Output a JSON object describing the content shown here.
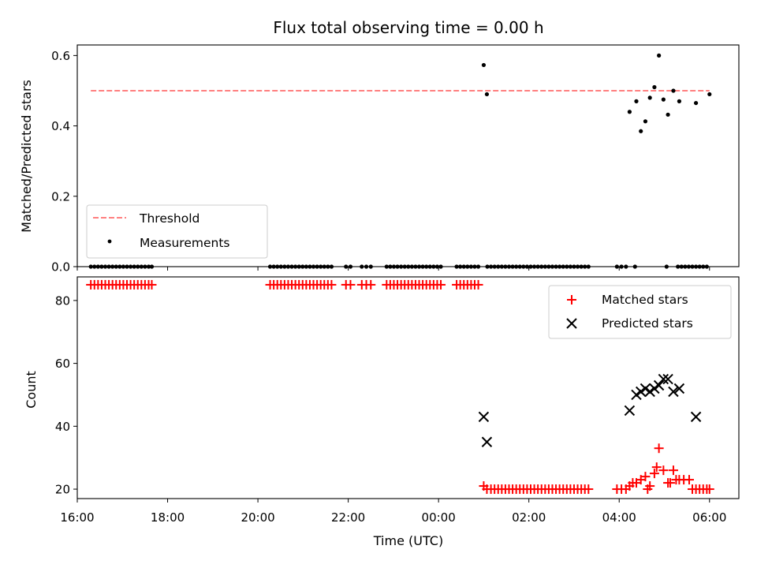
{
  "chart_data": [
    {
      "type": "scatter",
      "title": "Flux total observing time = 0.00 h",
      "ylabel": "Matched/Predicted stars",
      "xlabel": "",
      "xlim": [
        16.0,
        30.65
      ],
      "ylim": [
        0.0,
        0.63
      ],
      "xticks": [
        16,
        18,
        20,
        22,
        24,
        26,
        28,
        30
      ],
      "xticklabels_visible": false,
      "yticks": [
        0.0,
        0.2,
        0.4,
        0.6
      ],
      "yticklabels": [
        "0.0",
        "0.2",
        "0.4",
        "0.6"
      ],
      "legend": {
        "position": "lower-left",
        "entries": [
          {
            "label": "Threshold",
            "marker": "dashed-line",
            "color": "#ff7f7f"
          },
          {
            "label": "Measurements",
            "marker": "dot",
            "color": "#000000"
          }
        ]
      },
      "threshold": {
        "name": "Threshold",
        "y": 0.5,
        "x": [
          16.3,
          30.0
        ],
        "color": "#ff7f7f"
      },
      "series": [
        {
          "name": "Measurements",
          "color": "#000000",
          "x": [
            16.3,
            16.38,
            16.46,
            16.54,
            16.62,
            16.7,
            16.78,
            16.86,
            16.94,
            17.02,
            17.1,
            17.18,
            17.26,
            17.34,
            17.42,
            17.5,
            17.58,
            17.65,
            20.27,
            20.35,
            20.43,
            20.51,
            20.59,
            20.67,
            20.75,
            20.83,
            20.91,
            20.99,
            21.07,
            21.15,
            21.23,
            21.31,
            21.39,
            21.47,
            21.55,
            21.63,
            21.95,
            22.05,
            22.3,
            22.4,
            22.5,
            22.85,
            22.93,
            23.01,
            23.09,
            23.17,
            23.25,
            23.33,
            23.41,
            23.49,
            23.57,
            23.65,
            23.73,
            23.81,
            23.89,
            23.97,
            24.05,
            24.4,
            24.48,
            24.56,
            24.64,
            24.72,
            24.8,
            24.88,
            25.08,
            25.16,
            25.24,
            25.32,
            25.4,
            25.48,
            25.56,
            25.64,
            25.72,
            25.8,
            25.88,
            25.96,
            26.04,
            26.12,
            26.2,
            26.28,
            26.36,
            26.44,
            26.52,
            26.6,
            26.68,
            26.76,
            26.84,
            26.92,
            27.0,
            27.08,
            27.16,
            27.24,
            27.32,
            27.95,
            28.05,
            28.15,
            28.35,
            29.05,
            29.3,
            29.38,
            29.46,
            29.54,
            29.62,
            29.7,
            29.78,
            29.86,
            29.94,
            30.0,
            25.0,
            25.07,
            28.23,
            28.38,
            28.48,
            28.58,
            28.68,
            28.78,
            28.88,
            28.98,
            29.08,
            29.2,
            29.33,
            29.7
          ],
          "y": [
            0,
            0,
            0,
            0,
            0,
            0,
            0,
            0,
            0,
            0,
            0,
            0,
            0,
            0,
            0,
            0,
            0,
            0,
            0,
            0,
            0,
            0,
            0,
            0,
            0,
            0,
            0,
            0,
            0,
            0,
            0,
            0,
            0,
            0,
            0,
            0,
            0,
            0,
            0,
            0,
            0,
            0,
            0,
            0,
            0,
            0,
            0,
            0,
            0,
            0,
            0,
            0,
            0,
            0,
            0,
            0,
            0,
            0,
            0,
            0,
            0,
            0,
            0,
            0,
            0,
            0,
            0,
            0,
            0,
            0,
            0,
            0,
            0,
            0,
            0,
            0,
            0,
            0,
            0,
            0,
            0,
            0,
            0,
            0,
            0,
            0,
            0,
            0,
            0,
            0,
            0,
            0,
            0,
            0,
            0,
            0,
            0,
            0,
            0,
            0,
            0,
            0,
            0,
            0,
            0,
            0,
            0,
            0.49,
            0.573,
            0.49,
            0.44,
            0.47,
            0.385,
            0.413,
            0.48,
            0.51,
            0.6,
            0.475,
            0.432,
            0.5,
            0.47,
            0.465
          ]
        }
      ]
    },
    {
      "type": "scatter",
      "title": "",
      "ylabel": "Count",
      "xlabel": "Time (UTC)",
      "xlim": [
        16.0,
        30.65
      ],
      "ylim": [
        17.0,
        87.5
      ],
      "xticks": [
        16,
        18,
        20,
        22,
        24,
        26,
        28,
        30
      ],
      "xticklabels": [
        "16:00",
        "18:00",
        "20:00",
        "22:00",
        "00:00",
        "02:00",
        "04:00",
        "06:00"
      ],
      "yticks": [
        20,
        40,
        60,
        80
      ],
      "yticklabels": [
        "20",
        "40",
        "60",
        "80"
      ],
      "legend": {
        "position": "upper-right",
        "entries": [
          {
            "label": "Matched stars",
            "marker": "plus",
            "color": "#ff0000"
          },
          {
            "label": "Predicted stars",
            "marker": "x",
            "color": "#000000"
          }
        ]
      },
      "series": [
        {
          "name": "Matched stars",
          "color": "#ff0000",
          "x": [
            16.3,
            16.38,
            16.46,
            16.54,
            16.62,
            16.7,
            16.78,
            16.86,
            16.94,
            17.02,
            17.1,
            17.18,
            17.26,
            17.34,
            17.42,
            17.5,
            17.58,
            17.65,
            20.27,
            20.35,
            20.43,
            20.51,
            20.59,
            20.67,
            20.75,
            20.83,
            20.91,
            20.99,
            21.07,
            21.15,
            21.23,
            21.31,
            21.39,
            21.47,
            21.55,
            21.63,
            21.95,
            22.05,
            22.3,
            22.4,
            22.5,
            22.85,
            22.93,
            23.01,
            23.09,
            23.17,
            23.25,
            23.33,
            23.41,
            23.49,
            23.57,
            23.65,
            23.73,
            23.81,
            23.89,
            23.97,
            24.05,
            24.4,
            24.48,
            24.56,
            24.64,
            24.72,
            24.8,
            24.88,
            25.0,
            25.07,
            25.16,
            25.24,
            25.32,
            25.4,
            25.48,
            25.56,
            25.64,
            25.72,
            25.8,
            25.88,
            25.96,
            26.04,
            26.12,
            26.2,
            26.28,
            26.36,
            26.44,
            26.52,
            26.6,
            26.68,
            26.76,
            26.84,
            26.92,
            27.0,
            27.08,
            27.16,
            27.24,
            27.32,
            27.95,
            28.05,
            28.15,
            28.23,
            28.3,
            28.38,
            28.48,
            28.58,
            28.63,
            28.68,
            28.78,
            28.83,
            28.88,
            28.98,
            29.08,
            29.13,
            29.2,
            29.26,
            29.33,
            29.43,
            29.55,
            29.62,
            29.7,
            29.78,
            29.86,
            29.94,
            30.0
          ],
          "y": [
            85,
            85,
            85,
            85,
            85,
            85,
            85,
            85,
            85,
            85,
            85,
            85,
            85,
            85,
            85,
            85,
            85,
            85,
            85,
            85,
            85,
            85,
            85,
            85,
            85,
            85,
            85,
            85,
            85,
            85,
            85,
            85,
            85,
            85,
            85,
            85,
            85,
            85,
            85,
            85,
            85,
            85,
            85,
            85,
            85,
            85,
            85,
            85,
            85,
            85,
            85,
            85,
            85,
            85,
            85,
            85,
            85,
            85,
            85,
            85,
            85,
            85,
            85,
            85,
            21,
            20,
            20,
            20,
            20,
            20,
            20,
            20,
            20,
            20,
            20,
            20,
            20,
            20,
            20,
            20,
            20,
            20,
            20,
            20,
            20,
            20,
            20,
            20,
            20,
            20,
            20,
            20,
            20,
            20,
            20,
            20,
            20,
            21,
            22,
            22,
            23,
            24,
            20,
            21,
            25,
            27,
            33,
            26,
            22,
            22,
            26,
            23,
            23,
            23,
            23,
            20,
            20,
            20,
            20,
            20,
            20
          ]
        },
        {
          "name": "Predicted stars",
          "color": "#000000",
          "x": [
            25.0,
            25.07,
            28.23,
            28.38,
            28.48,
            28.58,
            28.68,
            28.78,
            28.88,
            28.98,
            29.08,
            29.2,
            29.33,
            29.7
          ],
          "y": [
            43,
            35,
            45,
            50,
            51,
            52,
            51,
            52,
            53,
            55,
            55,
            51,
            52,
            43
          ]
        }
      ]
    }
  ]
}
